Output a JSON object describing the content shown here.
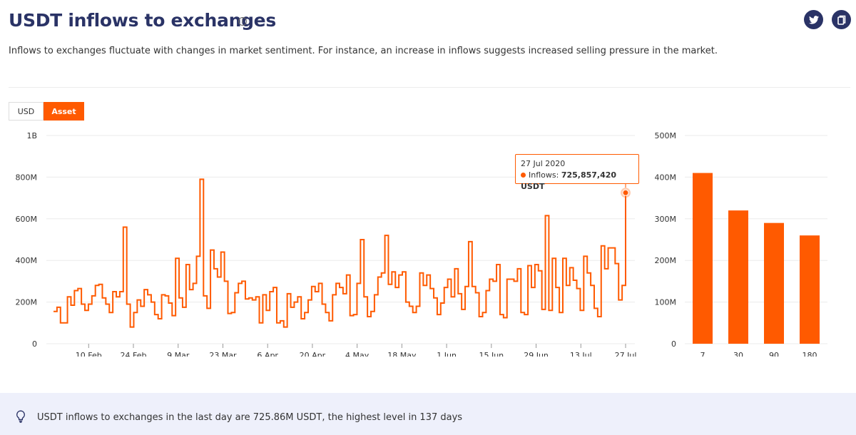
{
  "header": {
    "title": "USDT inflows to exchanges",
    "info_icon": "info-icon",
    "description": "Inflows to exchanges fluctuate with changes in market sentiment. For instance, an increase in inflows suggests increased selling pressure in the market.",
    "share_icons": [
      "twitter-icon",
      "copy-icon"
    ]
  },
  "toggle": {
    "usd_label": "USD",
    "asset_label": "Asset",
    "selected": "Asset"
  },
  "colors": {
    "accent": "#ff5a00",
    "title": "#2a3366",
    "footer_bg": "#eef0fb"
  },
  "tooltip": {
    "date": "27 Jul 2020",
    "label": "Inflows:",
    "value": "725,857,420 USDT"
  },
  "footer": {
    "icon": "lightbulb-icon",
    "text": "USDT inflows to exchanges in the last day are 725.86M USDT, the highest level in 137 days"
  },
  "chart_data": [
    {
      "type": "line",
      "line_style": "step",
      "series_unit": "USDT",
      "ylim": [
        0,
        1000000000
      ],
      "y_ticks": [
        "0",
        "200M",
        "400M",
        "600M",
        "800M",
        "1B"
      ],
      "x_ticks": [
        "10 Feb",
        "24 Feb",
        "9 Mar",
        "23 Mar",
        "6 Apr",
        "20 Apr",
        "4 May",
        "18 May",
        "1 Jun",
        "15 Jun",
        "29 Jun",
        "13 Jul",
        "27 Jul"
      ],
      "x_start": "2020-01-30",
      "x_end": "2020-07-27",
      "grid": "horizontal",
      "values_millions": [
        155,
        175,
        100,
        100,
        225,
        185,
        255,
        265,
        190,
        160,
        190,
        230,
        280,
        285,
        220,
        190,
        150,
        250,
        225,
        250,
        560,
        190,
        80,
        150,
        210,
        180,
        260,
        235,
        200,
        140,
        120,
        235,
        230,
        195,
        135,
        410,
        220,
        175,
        380,
        260,
        290,
        420,
        790,
        230,
        170,
        450,
        360,
        320,
        440,
        300,
        145,
        150,
        245,
        290,
        300,
        215,
        220,
        210,
        225,
        100,
        235,
        160,
        250,
        270,
        100,
        110,
        80,
        240,
        175,
        200,
        225,
        120,
        150,
        210,
        275,
        250,
        290,
        190,
        150,
        110,
        235,
        290,
        270,
        240,
        330,
        135,
        140,
        290,
        500,
        225,
        130,
        155,
        235,
        320,
        340,
        520,
        285,
        345,
        270,
        330,
        345,
        200,
        180,
        150,
        180,
        340,
        280,
        330,
        265,
        220,
        140,
        195,
        270,
        310,
        225,
        360,
        240,
        165,
        275,
        490,
        275,
        245,
        130,
        150,
        255,
        310,
        300,
        380,
        140,
        125,
        310,
        310,
        300,
        360,
        150,
        140,
        375,
        270,
        380,
        350,
        165,
        615,
        160,
        410,
        270,
        150,
        410,
        280,
        365,
        305,
        265,
        160,
        420,
        340,
        280,
        170,
        130,
        470,
        360,
        460,
        460,
        385,
        210,
        280,
        725
      ],
      "highlight": {
        "date": "27 Jul 2020",
        "value": 725857420
      }
    },
    {
      "type": "bar",
      "categories": [
        "7",
        "30",
        "90",
        "180"
      ],
      "values_millions": [
        410,
        320,
        290,
        260
      ],
      "ylim": [
        0,
        500000000
      ],
      "y_ticks": [
        "0",
        "100M",
        "200M",
        "300M",
        "400M",
        "500M"
      ]
    }
  ]
}
